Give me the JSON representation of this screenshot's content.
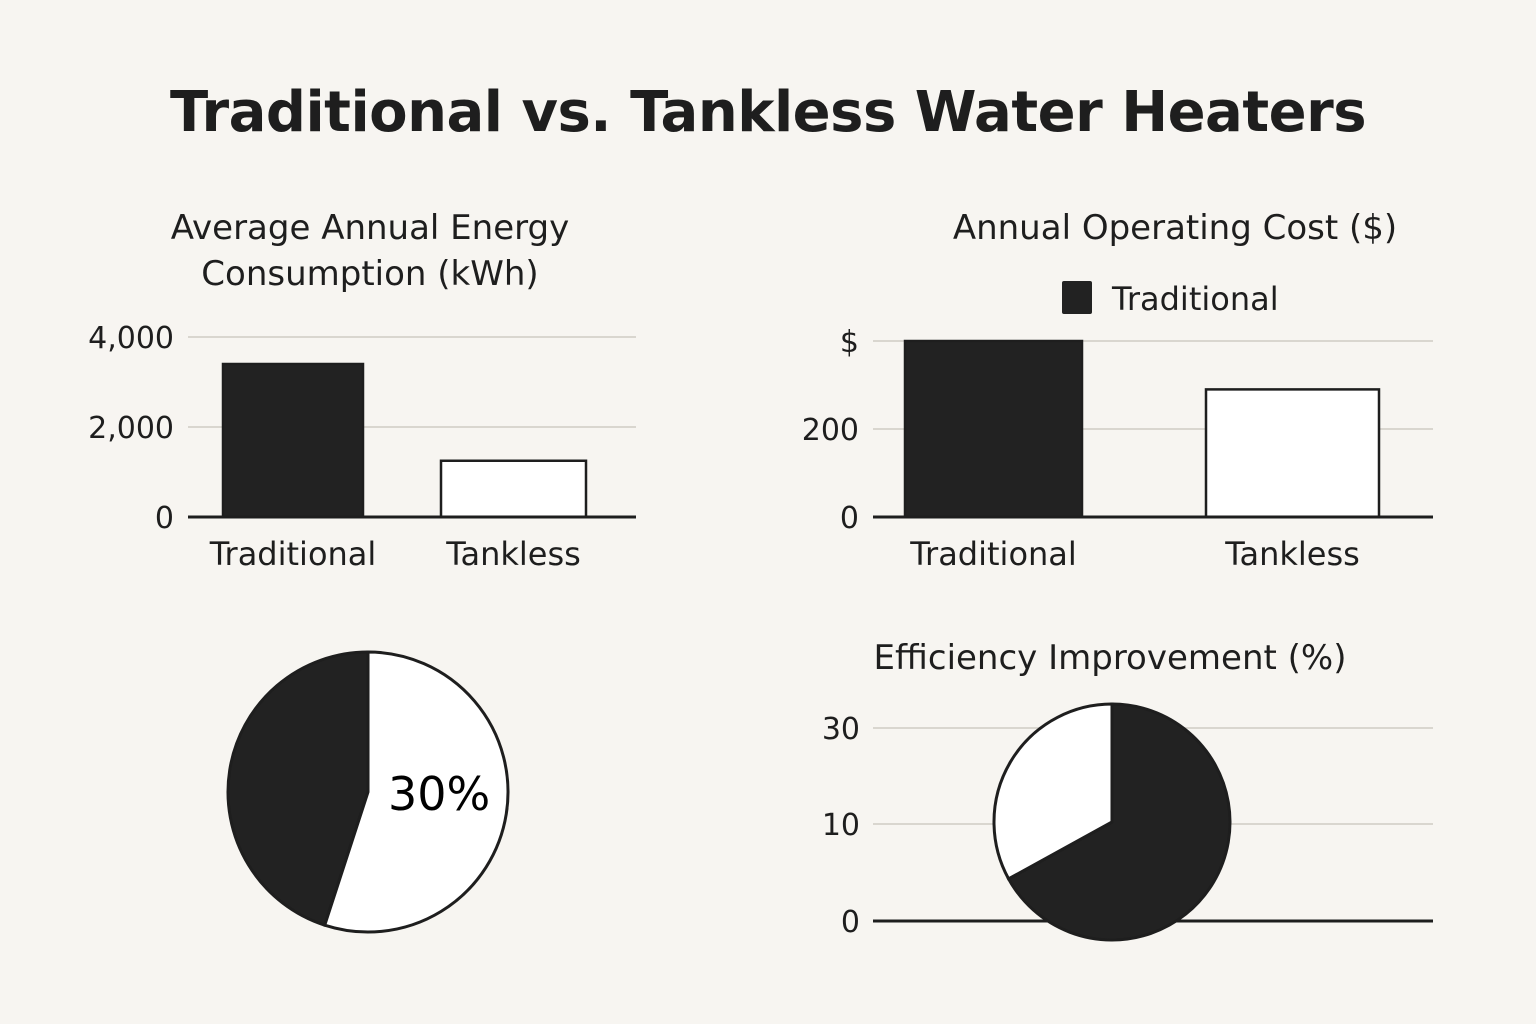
{
  "title": "Traditional vs. Tankless Water Heaters",
  "chart_data": [
    {
      "type": "bar",
      "title_lines": [
        "Average Annual Energy",
        "Consumption (kWh)"
      ],
      "categories": [
        "Traditional",
        "Tankless"
      ],
      "values": [
        3400,
        1250
      ],
      "ylim": [
        0,
        4000
      ],
      "yticks": [
        0,
        2000,
        4000
      ],
      "ytick_labels": [
        "0",
        "2,000",
        "4,000"
      ],
      "grid": true,
      "colors": [
        "#222222",
        "#ffffff"
      ]
    },
    {
      "type": "bar",
      "title": "Annual Operating Cost ($)",
      "categories": [
        "Traditional",
        "Tankless"
      ],
      "values": [
        400,
        290
      ],
      "ylim": [
        0,
        400
      ],
      "yticks": [
        0,
        200,
        400
      ],
      "ytick_labels": [
        "0",
        "200",
        "$"
      ],
      "legend": {
        "position": "top",
        "entries": [
          "Traditional"
        ]
      },
      "grid": true,
      "colors": [
        "#222222",
        "#ffffff"
      ]
    },
    {
      "type": "pie",
      "slices": [
        {
          "value": 45,
          "color": "#222222"
        },
        {
          "value": 55,
          "color": "#ffffff"
        }
      ],
      "label": "30%"
    },
    {
      "type": "pie",
      "title": "Efficiency Improvement (%)",
      "yticks": [
        0,
        10,
        30
      ],
      "ytick_labels": [
        "0",
        "10",
        "30"
      ],
      "slices": [
        {
          "value": 67,
          "color": "#222222"
        },
        {
          "value": 33,
          "color": "#ffffff"
        }
      ]
    }
  ]
}
